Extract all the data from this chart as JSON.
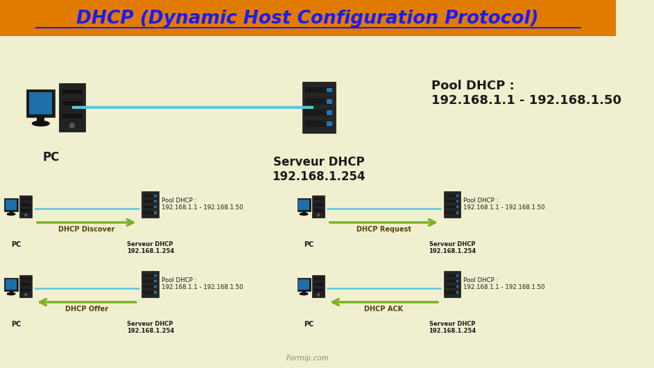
{
  "title": "DHCP (Dynamic Host Configuration Protocol)",
  "title_color": "#1a1aff",
  "title_bg": "#e07b00",
  "bg_color": "#f0f0d0",
  "pool_text": "Pool DHCP :\n192.168.1.1 - 192.168.1.50",
  "server_label": "Serveur DHCP\n192.168.1.254",
  "pc_label": "PC",
  "arrow_color_green": "#7ab228",
  "line_color_cyan": "#5bc8d3",
  "text_color_dark": "#1a1a1a",
  "text_color_brown": "#5a4000",
  "watermark": "Formip.com",
  "panels": [
    {
      "label": "DHCP Discover",
      "direction": "right"
    },
    {
      "label": "DHCP Request",
      "direction": "right"
    },
    {
      "label": "DHCP Offer",
      "direction": "left"
    },
    {
      "label": "DHCP ACK",
      "direction": "left"
    }
  ]
}
